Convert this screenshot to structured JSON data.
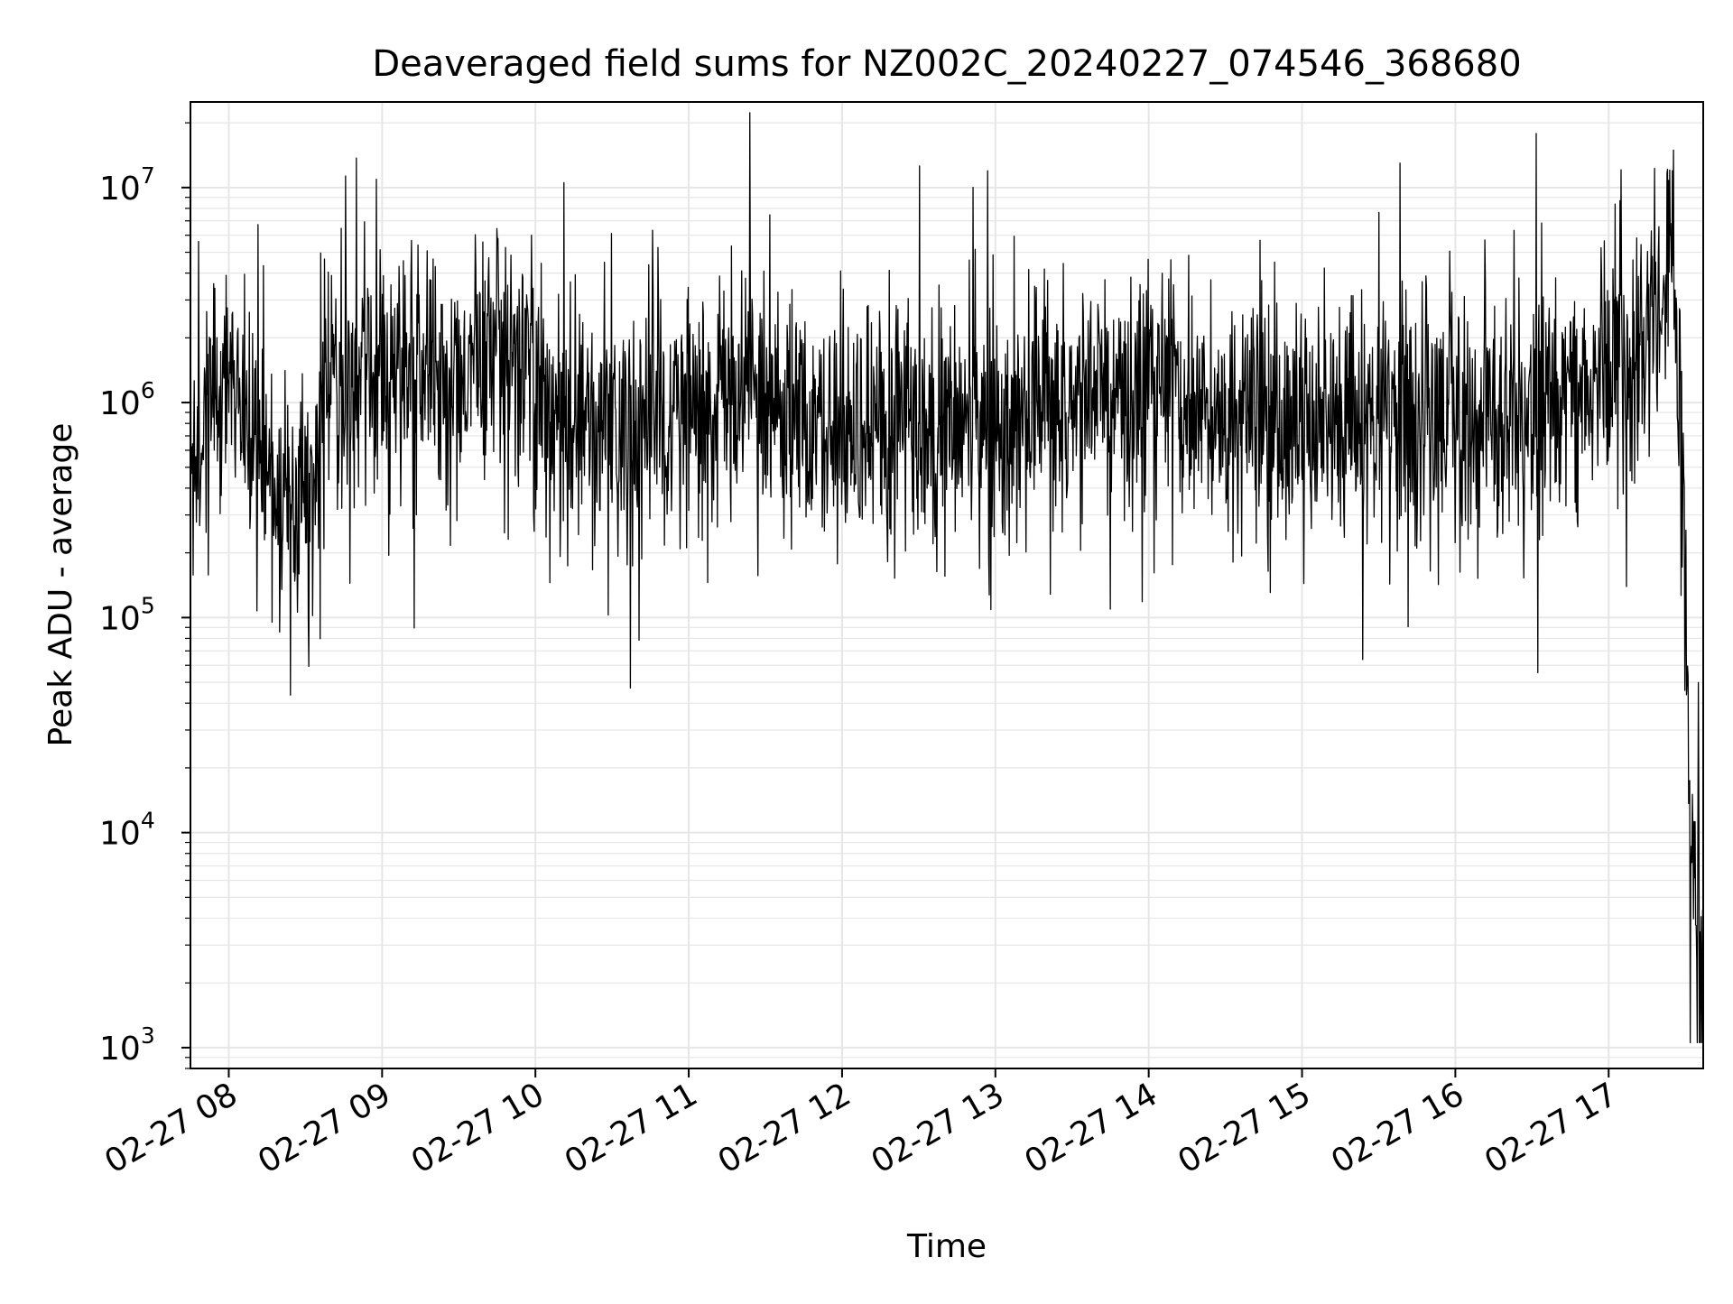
{
  "chart_data": {
    "type": "line",
    "title": "Deaveraged field sums for NZ002C_20240227_074546_368680",
    "xlabel": "Time",
    "ylabel": "Peak ADU - average",
    "yscale": "log",
    "ylim": [
      800,
      25000000
    ],
    "xlim": [
      "2024-02-27 07:45",
      "2024-02-27 17:37"
    ],
    "grid": true,
    "line_color": "#000000",
    "grid_color": "#e6e6e6",
    "y_ticks": [
      {
        "base": "10",
        "exp": "3",
        "value": 1000
      },
      {
        "base": "10",
        "exp": "4",
        "value": 10000
      },
      {
        "base": "10",
        "exp": "5",
        "value": 100000
      },
      {
        "base": "10",
        "exp": "6",
        "value": 1000000
      },
      {
        "base": "10",
        "exp": "7",
        "value": 10000000
      }
    ],
    "x_ticks": [
      {
        "label": "02-27 08",
        "time": "2024-02-27 08:00"
      },
      {
        "label": "02-27 09",
        "time": "2024-02-27 09:00"
      },
      {
        "label": "02-27 10",
        "time": "2024-02-27 10:00"
      },
      {
        "label": "02-27 11",
        "time": "2024-02-27 11:00"
      },
      {
        "label": "02-27 12",
        "time": "2024-02-27 12:00"
      },
      {
        "label": "02-27 13",
        "time": "2024-02-27 13:00"
      },
      {
        "label": "02-27 14",
        "time": "2024-02-27 14:00"
      },
      {
        "label": "02-27 15",
        "time": "2024-02-27 15:00"
      },
      {
        "label": "02-27 16",
        "time": "2024-02-27 16:00"
      },
      {
        "label": "02-27 17",
        "time": "2024-02-27 17:00"
      }
    ],
    "series": [
      {
        "x": [
          "2024-02-27 07:45",
          "2024-02-27 07:50",
          "2024-02-27 08:00",
          "2024-02-27 08:10",
          "2024-02-27 08:20",
          "2024-02-27 08:30",
          "2024-02-27 08:40",
          "2024-02-27 08:50",
          "2024-02-27 09:00",
          "2024-02-27 09:15",
          "2024-02-27 09:30",
          "2024-02-27 09:45",
          "2024-02-27 10:00",
          "2024-02-27 10:15",
          "2024-02-27 10:30",
          "2024-02-27 11:00",
          "2024-02-27 11:30",
          "2024-02-27 12:00",
          "2024-02-27 12:30",
          "2024-02-27 13:00",
          "2024-02-27 13:30",
          "2024-02-27 14:00",
          "2024-02-27 14:30",
          "2024-02-27 15:00",
          "2024-02-27 15:30",
          "2024-02-27 16:00",
          "2024-02-27 16:30",
          "2024-02-27 17:00",
          "2024-02-27 17:15",
          "2024-02-27 17:25",
          "2024-02-27 17:28",
          "2024-02-27 17:31",
          "2024-02-27 17:33",
          "2024-02-27 17:35",
          "2024-02-27 17:37"
        ],
        "y": [
          600000,
          800000,
          1300000,
          600000,
          400000,
          300000,
          1500000,
          1400000,
          1500000,
          1200000,
          1100000,
          2000000,
          1200000,
          900000,
          750000,
          850000,
          1000000,
          700000,
          750000,
          850000,
          1000000,
          1200000,
          900000,
          950000,
          850000,
          900000,
          900000,
          1200000,
          2000000,
          4500000,
          1000000,
          30000,
          5000,
          3000,
          2000
        ],
        "baseline": [
          [
            0.5,
            1.8
          ],
          [
            0.6,
            1.6
          ],
          [
            0.95,
            1.5
          ],
          [
            0.4,
            1.7
          ]
        ],
        "spread": 0.28,
        "spikes": 0.06
      }
    ]
  }
}
